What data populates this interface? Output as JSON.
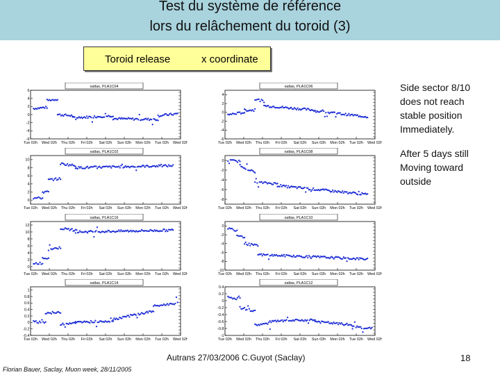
{
  "slide": {
    "title_line1": "Test du système de référence",
    "title_line2": "lors du relâchement du toroid (3)",
    "subtitle_left": "Toroid release",
    "subtitle_right": "x coordinate",
    "side_note_1": "Side sector 8/10\ndoes not reach\nstable position\nImmediately.",
    "side_note_2": "After 5 days still\nMoving toward\noutside",
    "footer_center": "Autrans 27/03/2006  C.Guyot (Saclay)",
    "footer_left": "Florian Bauer, Saclay, Muon week, 28/11/2005",
    "page_number": "18"
  },
  "colors": {
    "title_band": "#a9d3dd",
    "subtitle_box": "#ffff99",
    "points": "#1f2fd6"
  },
  "chart_data": [
    {
      "type": "scatter",
      "title": "xatlas, PLA1C04",
      "ylim": [
        -6,
        6
      ],
      "yticks": [
        "6",
        "4",
        "2",
        "0",
        "-2",
        "-4",
        "-6"
      ],
      "xticks": [
        "Tue 02h",
        "Wed 02h",
        "Thu 02h",
        "Fri 02h",
        "Sat 02h",
        "Sun 02h",
        "Mon 02h",
        "Tue 02h",
        "Wed 02h"
      ],
      "segments": [
        [
          0.02,
          0.11,
          1.5,
          1.8
        ],
        [
          0.11,
          0.18,
          3.5,
          3.8
        ],
        [
          0.18,
          0.28,
          0.0,
          -0.3
        ],
        [
          0.28,
          0.55,
          -0.8,
          -0.3
        ],
        [
          0.55,
          0.85,
          -1.0,
          -1.2
        ],
        [
          0.85,
          0.98,
          -0.3,
          0.2
        ]
      ]
    },
    {
      "type": "scatter",
      "title": "xatlas, PLA1C06",
      "ylim": [
        -6,
        5
      ],
      "yticks": [
        "4",
        "2",
        "0",
        "-2",
        "-4",
        "-6"
      ],
      "xticks": [
        "Tue 02h",
        "Wed 02h",
        "Thu 02h",
        "Fri 02h",
        "Sat 02h",
        "Sun 02h",
        "Mon 02h",
        "Tue 02h",
        "Wed 02h"
      ],
      "segments": [
        [
          0.02,
          0.13,
          -0.5,
          0.0
        ],
        [
          0.13,
          0.2,
          0.5,
          0.5
        ],
        [
          0.2,
          0.26,
          3.0,
          2.5
        ],
        [
          0.26,
          0.6,
          1.5,
          0.5
        ],
        [
          0.6,
          0.95,
          0.3,
          -1.0
        ]
      ]
    },
    {
      "type": "scatter",
      "title": "xatlas, PLA1C02",
      "ylim": [
        -1,
        11
      ],
      "yticks": [
        "10",
        "8",
        "6",
        "4",
        "2",
        "0"
      ],
      "xticks": [
        "Tue 02h",
        "Wed 02h",
        "Thu 02h",
        "Fri 02h",
        "Sat 02h",
        "Sun 02h",
        "Mon 02h",
        "Tue 02h",
        "Wed 02h"
      ],
      "segments": [
        [
          0.02,
          0.08,
          0.5,
          0.5
        ],
        [
          0.08,
          0.12,
          2.0,
          2.0
        ],
        [
          0.12,
          0.2,
          5.0,
          5.3
        ],
        [
          0.2,
          0.3,
          9.0,
          8.5
        ],
        [
          0.3,
          0.95,
          8.0,
          8.5
        ]
      ]
    },
    {
      "type": "scatter",
      "title": "xatlas, PLA1C08",
      "ylim": [
        -9,
        1
      ],
      "yticks": [
        "0",
        "-2",
        "-4",
        "-6",
        "-8"
      ],
      "xticks": [
        "Tue 02h",
        "Wed 02h",
        "Thu 02h",
        "Fri 02h",
        "Sat 02h",
        "Sun 02h",
        "Mon 02h",
        "Tue 02h",
        "Wed 02h"
      ],
      "segments": [
        [
          0.02,
          0.1,
          0.0,
          -0.2
        ],
        [
          0.1,
          0.2,
          -1.0,
          -2.5
        ],
        [
          0.2,
          0.35,
          -4.5,
          -4.8
        ],
        [
          0.35,
          0.95,
          -5.2,
          -7.0
        ]
      ]
    },
    {
      "type": "scatter",
      "title": "xatlas, PLA1C16",
      "ylim": [
        -1,
        13
      ],
      "yticks": [
        "12",
        "10",
        "8",
        "6",
        "4",
        "2",
        "0"
      ],
      "xticks": [
        "Tue 02h",
        "Wed 02h",
        "Thu 02h",
        "Fri 02h",
        "Sat 02h",
        "Sun 02h",
        "Mon 02h",
        "Tue 02h",
        "Wed 02h"
      ],
      "segments": [
        [
          0.02,
          0.08,
          1.0,
          1.0
        ],
        [
          0.08,
          0.12,
          2.5,
          2.5
        ],
        [
          0.12,
          0.2,
          5.0,
          5.5
        ],
        [
          0.2,
          0.3,
          11.0,
          10.5
        ],
        [
          0.3,
          0.95,
          10.0,
          10.5
        ]
      ]
    },
    {
      "type": "scatter",
      "title": "xatlas, PLA1C10",
      "ylim": [
        -10,
        1
      ],
      "yticks": [
        "0",
        "-2",
        "-4",
        "-6",
        "-8",
        "-10"
      ],
      "xticks": [
        "Tue 02h",
        "Wed 02h",
        "Thu 02h",
        "Fri 02h",
        "Sat 02h",
        "Sun 02h",
        "Mon 02h",
        "Tue 02h",
        "Wed 02h"
      ],
      "segments": [
        [
          0.02,
          0.08,
          -0.5,
          -1.0
        ],
        [
          0.08,
          0.13,
          -2.0,
          -2.5
        ],
        [
          0.13,
          0.22,
          -4.0,
          -4.5
        ],
        [
          0.22,
          0.95,
          -6.5,
          -7.5
        ]
      ]
    },
    {
      "type": "scatter",
      "title": "xatlas, PLA1C14",
      "ylim": [
        -0.4,
        1.1
      ],
      "yticks": [
        "1",
        "0.8",
        "0.6",
        "0.4",
        "0.2",
        "0",
        "-0.2",
        "-0.4"
      ],
      "xticks": [
        "Tue 02h",
        "Wed 02h",
        "Thu 02h",
        "Fri 02h",
        "Sat 02h",
        "Sun 02h",
        "Mon 02h",
        "Tue 02h",
        "Wed 02h"
      ],
      "segments": [
        [
          0.02,
          0.1,
          0.02,
          0.0
        ],
        [
          0.1,
          0.2,
          0.3,
          0.3
        ],
        [
          0.2,
          0.3,
          -0.05,
          0.0
        ],
        [
          0.3,
          0.55,
          0.0,
          0.05
        ],
        [
          0.55,
          0.82,
          0.1,
          0.35
        ],
        [
          0.82,
          0.98,
          0.5,
          0.6
        ]
      ]
    },
    {
      "type": "scatter",
      "title": "xatlas, PLA1C12",
      "ylim": [
        -1,
        0.4
      ],
      "yticks": [
        "0.4",
        "0.2",
        "0",
        "-0.2",
        "-0.4",
        "-0.6",
        "-0.8",
        "-1"
      ],
      "xticks": [
        "Tue 02h",
        "Wed 02h",
        "Thu 02h",
        "Fri 02h",
        "Sat 02h",
        "Sun 02h",
        "Mon 02h",
        "Tue 02h",
        "Wed 02h"
      ],
      "segments": [
        [
          0.02,
          0.1,
          0.1,
          0.05
        ],
        [
          0.1,
          0.2,
          -0.2,
          -0.3
        ],
        [
          0.2,
          0.3,
          -0.7,
          -0.65
        ],
        [
          0.3,
          0.6,
          -0.6,
          -0.55
        ],
        [
          0.6,
          0.85,
          -0.6,
          -0.7
        ],
        [
          0.85,
          0.98,
          -0.75,
          -0.8
        ]
      ]
    }
  ]
}
